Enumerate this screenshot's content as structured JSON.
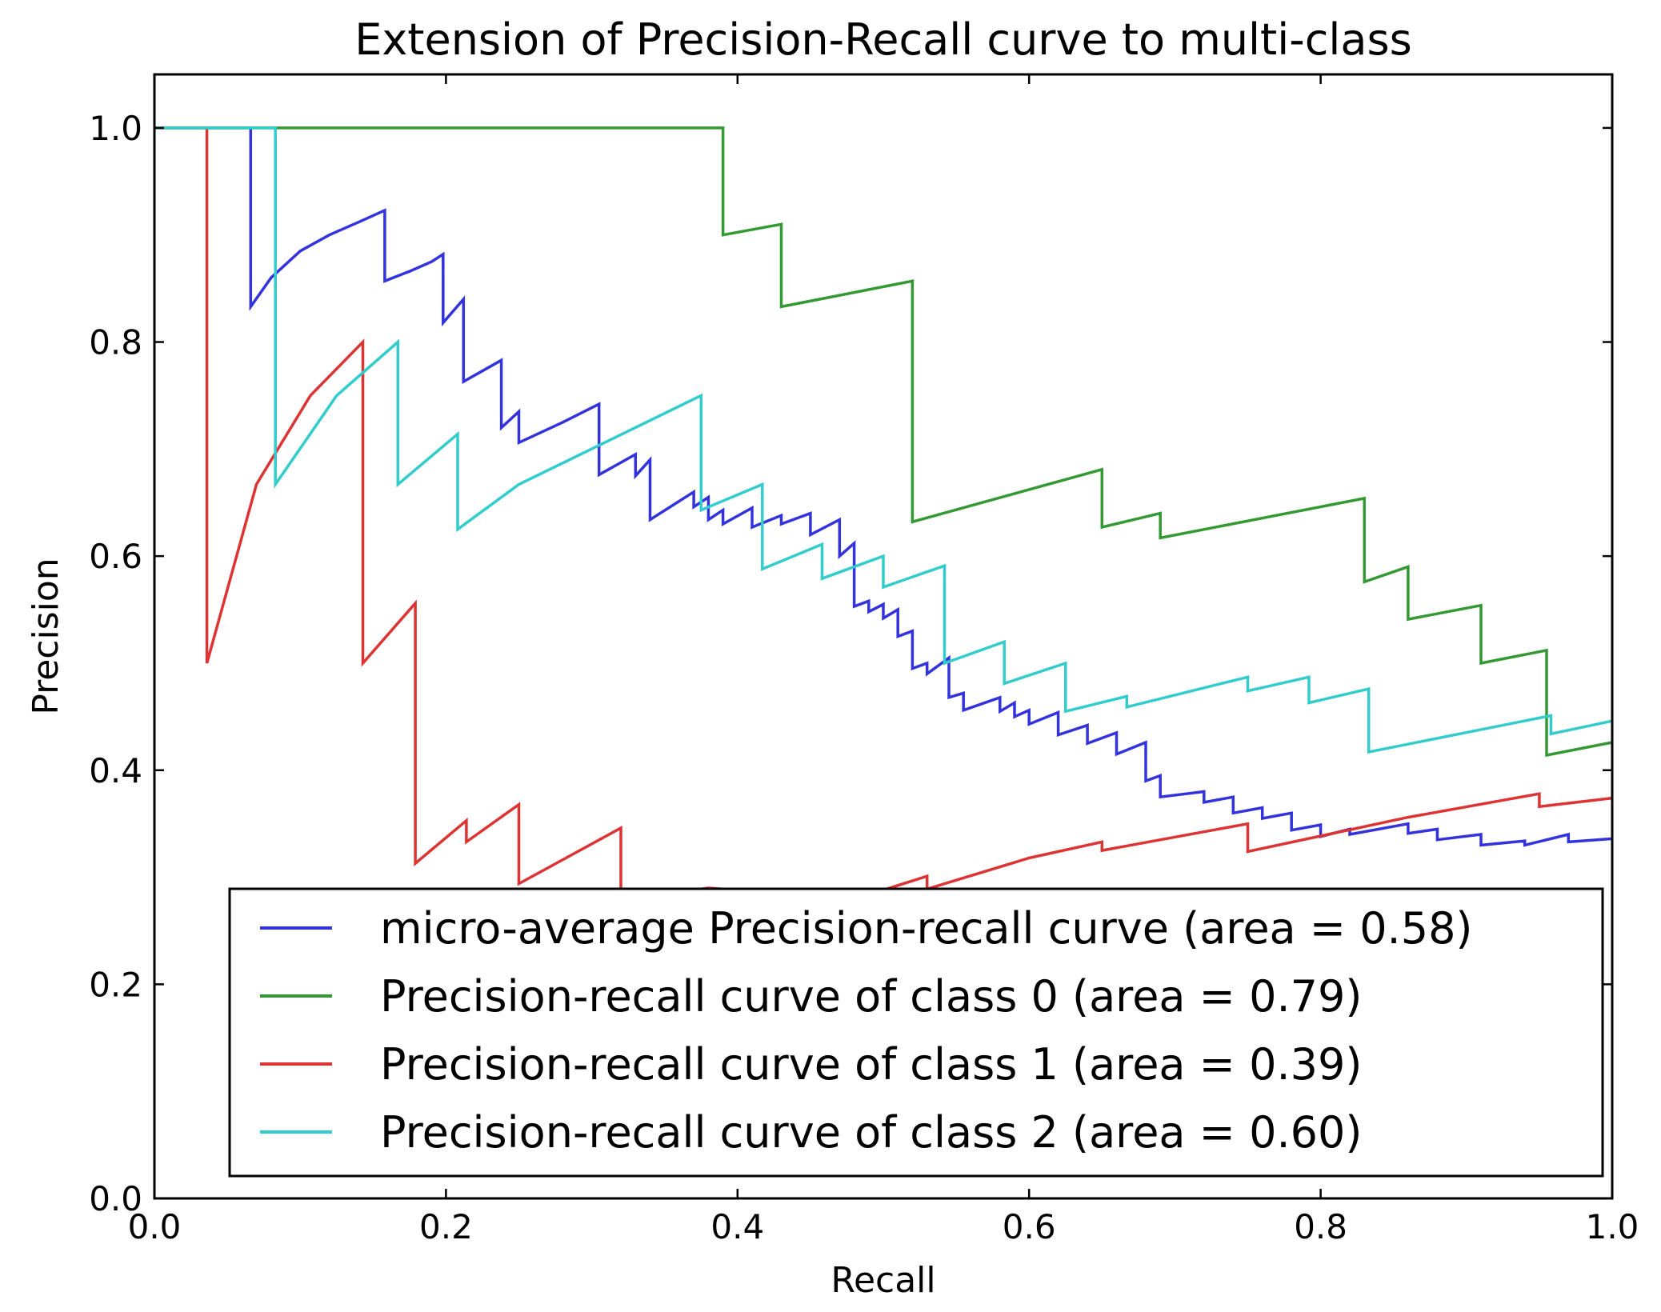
{
  "chart_data": {
    "type": "line",
    "title": "Extension of Precision-Recall curve to multi-class",
    "xlabel": "Recall",
    "ylabel": "Precision",
    "xlim": [
      0.0,
      1.0
    ],
    "ylim": [
      0.0,
      1.05
    ],
    "x_ticks": [
      "0.0",
      "0.2",
      "0.4",
      "0.6",
      "0.8",
      "1.0"
    ],
    "y_ticks": [
      "0.0",
      "0.2",
      "0.4",
      "0.6",
      "0.8",
      "1.0"
    ],
    "x_tick_values": [
      0.0,
      0.2,
      0.4,
      0.6,
      0.8,
      1.0
    ],
    "y_tick_values": [
      0.0,
      0.2,
      0.4,
      0.6,
      0.8,
      1.0
    ],
    "grid": false,
    "legend_position": "lower-right",
    "series": [
      {
        "name": "micro-average Precision-recall curve (area = 0.58)",
        "color": "#3333dd",
        "points": [
          [
            0.0,
            1.0
          ],
          [
            0.066,
            1.0
          ],
          [
            0.066,
            0.833
          ],
          [
            0.08,
            0.86
          ],
          [
            0.1,
            0.885
          ],
          [
            0.12,
            0.9
          ],
          [
            0.14,
            0.912
          ],
          [
            0.158,
            0.923
          ],
          [
            0.158,
            0.857
          ],
          [
            0.175,
            0.866
          ],
          [
            0.19,
            0.875
          ],
          [
            0.198,
            0.882
          ],
          [
            0.198,
            0.818
          ],
          [
            0.212,
            0.84
          ],
          [
            0.212,
            0.763
          ],
          [
            0.238,
            0.783
          ],
          [
            0.238,
            0.72
          ],
          [
            0.25,
            0.735
          ],
          [
            0.25,
            0.706
          ],
          [
            0.28,
            0.725
          ],
          [
            0.305,
            0.742
          ],
          [
            0.305,
            0.676
          ],
          [
            0.33,
            0.695
          ],
          [
            0.33,
            0.675
          ],
          [
            0.34,
            0.69
          ],
          [
            0.34,
            0.634
          ],
          [
            0.37,
            0.66
          ],
          [
            0.37,
            0.646
          ],
          [
            0.38,
            0.655
          ],
          [
            0.38,
            0.634
          ],
          [
            0.39,
            0.643
          ],
          [
            0.39,
            0.63
          ],
          [
            0.41,
            0.645
          ],
          [
            0.41,
            0.627
          ],
          [
            0.43,
            0.638
          ],
          [
            0.43,
            0.63
          ],
          [
            0.45,
            0.64
          ],
          [
            0.45,
            0.62
          ],
          [
            0.47,
            0.634
          ],
          [
            0.47,
            0.6
          ],
          [
            0.48,
            0.612
          ],
          [
            0.48,
            0.553
          ],
          [
            0.49,
            0.558
          ],
          [
            0.49,
            0.548
          ],
          [
            0.5,
            0.555
          ],
          [
            0.5,
            0.542
          ],
          [
            0.51,
            0.55
          ],
          [
            0.51,
            0.525
          ],
          [
            0.52,
            0.53
          ],
          [
            0.52,
            0.495
          ],
          [
            0.53,
            0.5
          ],
          [
            0.53,
            0.49
          ],
          [
            0.545,
            0.505
          ],
          [
            0.545,
            0.468
          ],
          [
            0.555,
            0.472
          ],
          [
            0.555,
            0.456
          ],
          [
            0.58,
            0.468
          ],
          [
            0.58,
            0.455
          ],
          [
            0.59,
            0.463
          ],
          [
            0.59,
            0.45
          ],
          [
            0.6,
            0.456
          ],
          [
            0.6,
            0.443
          ],
          [
            0.62,
            0.454
          ],
          [
            0.62,
            0.433
          ],
          [
            0.64,
            0.442
          ],
          [
            0.64,
            0.425
          ],
          [
            0.66,
            0.435
          ],
          [
            0.66,
            0.415
          ],
          [
            0.68,
            0.426
          ],
          [
            0.68,
            0.39
          ],
          [
            0.69,
            0.395
          ],
          [
            0.69,
            0.375
          ],
          [
            0.72,
            0.38
          ],
          [
            0.72,
            0.37
          ],
          [
            0.74,
            0.375
          ],
          [
            0.74,
            0.36
          ],
          [
            0.76,
            0.365
          ],
          [
            0.76,
            0.355
          ],
          [
            0.78,
            0.36
          ],
          [
            0.78,
            0.344
          ],
          [
            0.8,
            0.349
          ],
          [
            0.8,
            0.338
          ],
          [
            0.82,
            0.345
          ],
          [
            0.82,
            0.34
          ],
          [
            0.86,
            0.35
          ],
          [
            0.86,
            0.341
          ],
          [
            0.88,
            0.345
          ],
          [
            0.88,
            0.335
          ],
          [
            0.91,
            0.34
          ],
          [
            0.91,
            0.33
          ],
          [
            0.94,
            0.334
          ],
          [
            0.94,
            0.33
          ],
          [
            0.97,
            0.34
          ],
          [
            0.97,
            0.333
          ],
          [
            1.0,
            0.336
          ]
        ]
      },
      {
        "name": "Precision-recall curve of class 0 (area = 0.79)",
        "color": "#339933",
        "points": [
          [
            0.0,
            1.0
          ],
          [
            0.39,
            1.0
          ],
          [
            0.39,
            0.9
          ],
          [
            0.43,
            0.91
          ],
          [
            0.43,
            0.833
          ],
          [
            0.52,
            0.857
          ],
          [
            0.52,
            0.632
          ],
          [
            0.65,
            0.681
          ],
          [
            0.65,
            0.627
          ],
          [
            0.69,
            0.64
          ],
          [
            0.69,
            0.617
          ],
          [
            0.83,
            0.654
          ],
          [
            0.83,
            0.576
          ],
          [
            0.86,
            0.59
          ],
          [
            0.86,
            0.541
          ],
          [
            0.91,
            0.554
          ],
          [
            0.91,
            0.5
          ],
          [
            0.955,
            0.512
          ],
          [
            0.955,
            0.414
          ],
          [
            1.0,
            0.426
          ]
        ]
      },
      {
        "name": "Precision-recall curve of class 1 (area = 0.39)",
        "color": "#dd3333",
        "points": [
          [
            0.0,
            1.0
          ],
          [
            0.036,
            1.0
          ],
          [
            0.036,
            0.5
          ],
          [
            0.07,
            0.667
          ],
          [
            0.107,
            0.75
          ],
          [
            0.143,
            0.8
          ],
          [
            0.143,
            0.5
          ],
          [
            0.179,
            0.556
          ],
          [
            0.179,
            0.313
          ],
          [
            0.214,
            0.353
          ],
          [
            0.214,
            0.333
          ],
          [
            0.25,
            0.368
          ],
          [
            0.25,
            0.294
          ],
          [
            0.32,
            0.346
          ],
          [
            0.32,
            0.279
          ],
          [
            0.38,
            0.29
          ],
          [
            0.46,
            0.282
          ],
          [
            0.46,
            0.279
          ],
          [
            0.49,
            0.287
          ],
          [
            0.5,
            0.288
          ],
          [
            0.53,
            0.301
          ],
          [
            0.53,
            0.289
          ],
          [
            0.6,
            0.318
          ],
          [
            0.65,
            0.333
          ],
          [
            0.65,
            0.325
          ],
          [
            0.75,
            0.35
          ],
          [
            0.75,
            0.324
          ],
          [
            0.86,
            0.356
          ],
          [
            0.95,
            0.378
          ],
          [
            0.95,
            0.366
          ],
          [
            1.0,
            0.374
          ]
        ]
      },
      {
        "name": "Precision-recall curve of class 2 (area = 0.60)",
        "color": "#33cccc",
        "points": [
          [
            0.0,
            1.0
          ],
          [
            0.083,
            1.0
          ],
          [
            0.083,
            0.667
          ],
          [
            0.125,
            0.75
          ],
          [
            0.167,
            0.8
          ],
          [
            0.167,
            0.667
          ],
          [
            0.208,
            0.714
          ],
          [
            0.208,
            0.625
          ],
          [
            0.25,
            0.667
          ],
          [
            0.375,
            0.75
          ],
          [
            0.375,
            0.643
          ],
          [
            0.417,
            0.667
          ],
          [
            0.417,
            0.588
          ],
          [
            0.458,
            0.611
          ],
          [
            0.458,
            0.579
          ],
          [
            0.5,
            0.6
          ],
          [
            0.5,
            0.571
          ],
          [
            0.542,
            0.591
          ],
          [
            0.542,
            0.5
          ],
          [
            0.583,
            0.52
          ],
          [
            0.583,
            0.481
          ],
          [
            0.625,
            0.5
          ],
          [
            0.625,
            0.455
          ],
          [
            0.667,
            0.469
          ],
          [
            0.667,
            0.459
          ],
          [
            0.75,
            0.487
          ],
          [
            0.75,
            0.474
          ],
          [
            0.792,
            0.487
          ],
          [
            0.792,
            0.463
          ],
          [
            0.833,
            0.476
          ],
          [
            0.833,
            0.417
          ],
          [
            0.958,
            0.451
          ],
          [
            0.958,
            0.434
          ],
          [
            1.0,
            0.446
          ]
        ]
      }
    ]
  }
}
